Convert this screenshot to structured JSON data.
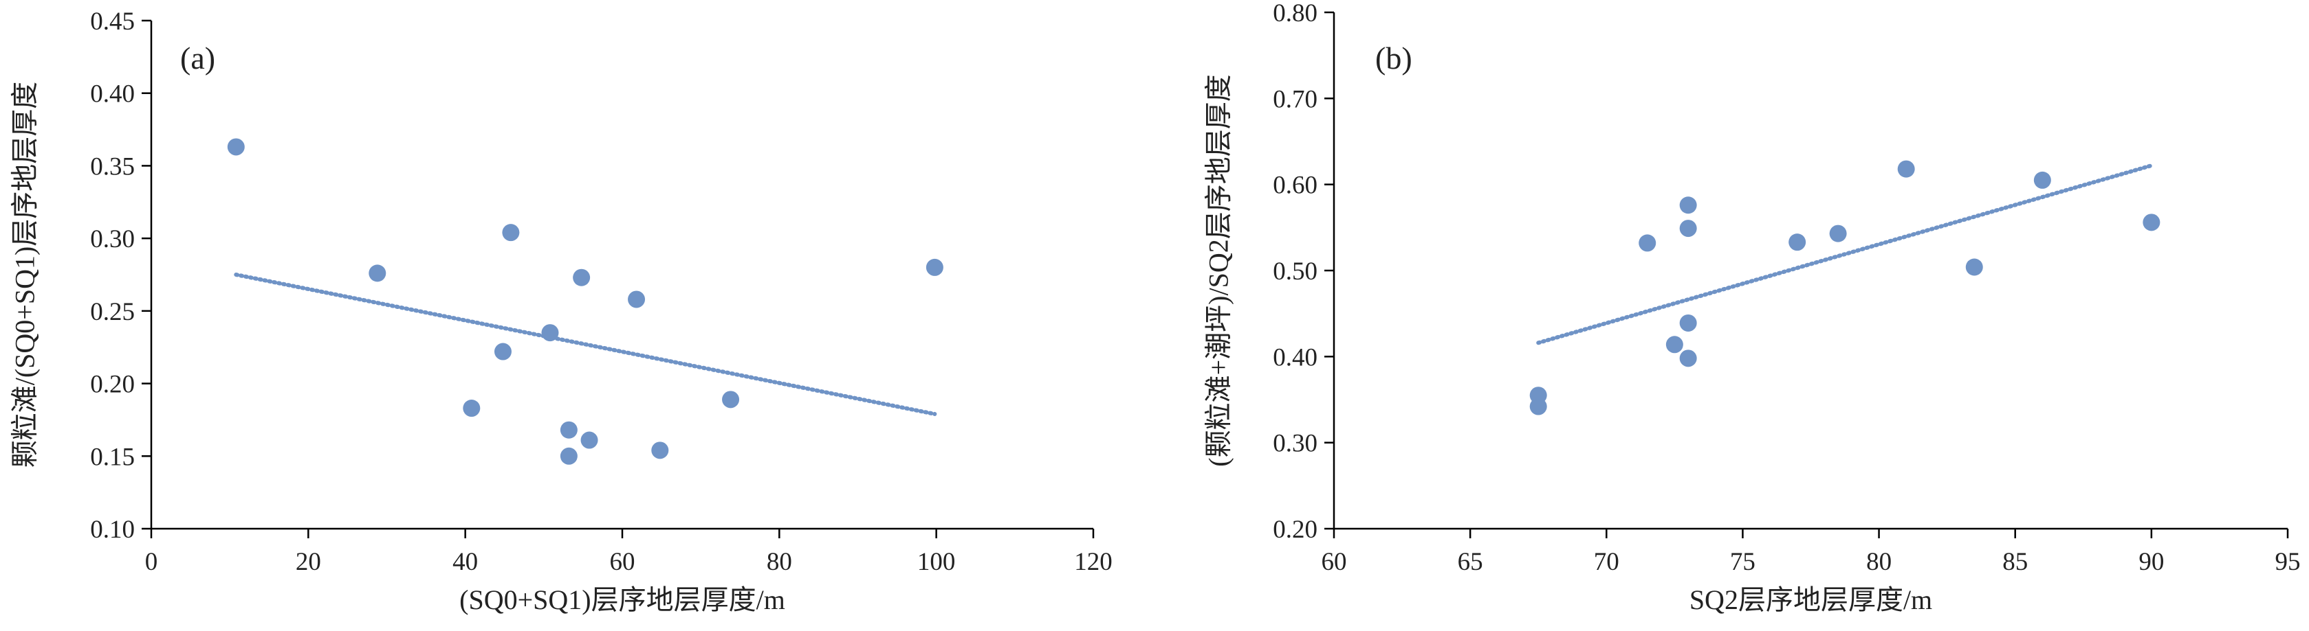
{
  "style": {
    "point_color": "#6f93c6",
    "trend_color": "#6f93c6",
    "axis_color": "#000000"
  },
  "chart_data": [
    {
      "type": "scatter",
      "panel_label": "(a)",
      "xlabel": "(SQ0+SQ1)层序地层厚度/m",
      "ylabel": "颗粒滩/(SQ0+SQ1)层序地层厚度",
      "xlim": [
        0,
        120
      ],
      "ylim": [
        0.1,
        0.45
      ],
      "xticks": [
        0,
        20,
        40,
        60,
        80,
        100,
        120
      ],
      "xtick_labels": [
        "0",
        "20",
        "40",
        "60",
        "80",
        "100",
        "120"
      ],
      "yticks": [
        0.1,
        0.15,
        0.2,
        0.25,
        0.3,
        0.35,
        0.4,
        0.45
      ],
      "ytick_labels": [
        "0.10",
        "0.15",
        "0.20",
        "0.25",
        "0.30",
        "0.35",
        "0.40",
        "0.45"
      ],
      "grid": false,
      "points": [
        [
          10.8,
          0.363
        ],
        [
          28.8,
          0.276
        ],
        [
          40.8,
          0.183
        ],
        [
          44.8,
          0.222
        ],
        [
          45.8,
          0.304
        ],
        [
          50.8,
          0.235
        ],
        [
          53.2,
          0.168
        ],
        [
          53.2,
          0.15
        ],
        [
          54.8,
          0.273
        ],
        [
          55.8,
          0.161
        ],
        [
          61.8,
          0.258
        ],
        [
          64.8,
          0.154
        ],
        [
          73.8,
          0.189
        ],
        [
          99.8,
          0.28
        ]
      ],
      "trendline": {
        "type": "linear",
        "from": [
          10.8,
          0.275
        ],
        "to": [
          99.8,
          0.179
        ]
      }
    },
    {
      "type": "scatter",
      "panel_label": "(b)",
      "xlabel": "SQ2层序地层厚度/m",
      "ylabel": "(颗粒滩+潮坪)/SQ2层序地层厚度",
      "xlim": [
        60,
        95
      ],
      "ylim": [
        0.2,
        0.8
      ],
      "xticks": [
        60,
        65,
        70,
        75,
        80,
        85,
        90,
        95
      ],
      "xtick_labels": [
        "60",
        "65",
        "70",
        "75",
        "80",
        "85",
        "90",
        "95"
      ],
      "yticks": [
        0.2,
        0.3,
        0.4,
        0.5,
        0.6,
        0.7,
        0.8
      ],
      "ytick_labels": [
        "0.20",
        "0.30",
        "0.40",
        "0.50",
        "0.60",
        "0.70",
        "0.80"
      ],
      "grid": false,
      "points": [
        [
          67.5,
          0.355
        ],
        [
          67.5,
          0.342
        ],
        [
          71.5,
          0.532
        ],
        [
          72.5,
          0.414
        ],
        [
          73.0,
          0.576
        ],
        [
          73.0,
          0.549
        ],
        [
          73.0,
          0.439
        ],
        [
          73.0,
          0.398
        ],
        [
          77.0,
          0.533
        ],
        [
          78.5,
          0.543
        ],
        [
          81.0,
          0.618
        ],
        [
          83.5,
          0.504
        ],
        [
          86.0,
          0.605
        ],
        [
          90.0,
          0.556
        ]
      ],
      "trendline": {
        "type": "linear",
        "from": [
          67.5,
          0.416
        ],
        "to": [
          90.0,
          0.622
        ]
      }
    }
  ]
}
